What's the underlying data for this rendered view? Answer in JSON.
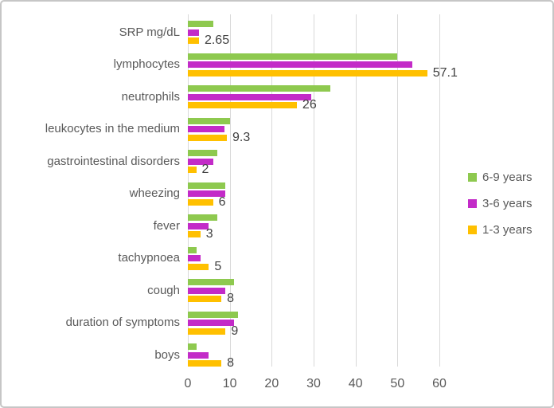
{
  "chart_data": {
    "type": "bar",
    "orientation": "horizontal",
    "title": "",
    "xlabel": "",
    "ylabel": "",
    "xlim": [
      0,
      60
    ],
    "x_ticks": [
      0,
      10,
      20,
      30,
      40,
      50,
      60
    ],
    "grid": "vertical",
    "legend_position": "right",
    "categories": [
      "SRP mg/dL",
      "lymphocytes",
      "neutrophils",
      "leukocytes in the medium",
      "gastrointestinal disorders",
      "wheezing",
      "fever",
      "tachypnoea",
      "cough",
      "duration of symptoms",
      "boys"
    ],
    "series": [
      {
        "name": "6-9 years",
        "color": "#8ec94f",
        "values": [
          6,
          50,
          34,
          10,
          7,
          9,
          7,
          2,
          11,
          12,
          2
        ]
      },
      {
        "name": "3-6 years",
        "color": "#c32bc8",
        "values": [
          2.7,
          53.5,
          29.5,
          8.7,
          6,
          9,
          5,
          3,
          9,
          11,
          5
        ]
      },
      {
        "name": "1-3 years",
        "color": "#ffc000",
        "values": [
          2.65,
          57.1,
          26,
          9.3,
          2,
          6,
          3,
          5,
          8,
          9,
          8
        ]
      }
    ],
    "data_labels": {
      "series": "1-3 years",
      "values": [
        "2.65",
        "57.1",
        "26",
        "9.3",
        "2",
        "6",
        "3",
        "5",
        "8",
        "9",
        "8"
      ]
    }
  },
  "colors": {
    "background": "#ffffff",
    "border": "#c6c6c6",
    "gridline": "#d9d9d9",
    "axis_text": "#595959",
    "data_label_text": "#404040"
  }
}
